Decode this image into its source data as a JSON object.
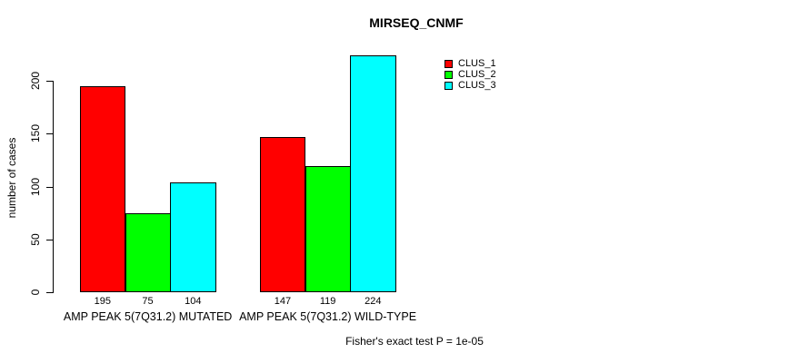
{
  "page": {
    "background": "#ffffff"
  },
  "chart_data": {
    "type": "bar",
    "title": "MIRSEQ_CNMF",
    "ylabel": "number of cases",
    "xlabel": "",
    "categories": [
      "AMP PEAK 5(7Q31.2) MUTATED",
      "AMP PEAK 5(7Q31.2) WILD-TYPE"
    ],
    "series": [
      {
        "name": "CLUS_1",
        "color": "#ff0000",
        "values": [
          195,
          147
        ]
      },
      {
        "name": "CLUS_2",
        "color": "#00ff00",
        "values": [
          75,
          119
        ]
      },
      {
        "name": "CLUS_3",
        "color": "#00ffff",
        "values": [
          104,
          224
        ]
      }
    ],
    "yticks": [
      0,
      50,
      100,
      150,
      200
    ],
    "ylim": [
      0,
      230
    ],
    "grid": false,
    "bar_border_color": "#000000",
    "value_labels_shown": true,
    "legend_position": "top-right",
    "annotation": "Fisher's exact test P = 1e-05"
  }
}
